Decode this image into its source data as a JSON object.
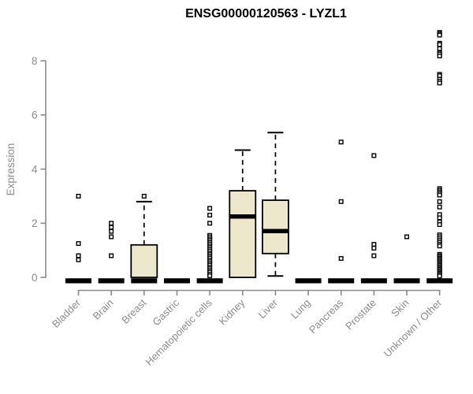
{
  "chart_data": {
    "type": "boxplot",
    "title": "ENSG00000120563 - LYZL1",
    "ylabel": "Expression",
    "xlabel": "",
    "yticks": [
      0,
      2,
      4,
      6,
      8
    ],
    "ylim": [
      0,
      9.2
    ],
    "grid": false,
    "legend": "none",
    "colors": {
      "box_fill": "#EDE7CC",
      "box_stroke": "#000000",
      "median": "#000000",
      "axis": "#8B8B8B",
      "tick_label": "#8B8B8B",
      "title": "#000000",
      "background": "#FFFFFF"
    },
    "groups": [
      {
        "label": "Bladder",
        "box": null,
        "outliers": [
          3.0,
          1.25,
          0.8,
          0.65
        ]
      },
      {
        "label": "Brain",
        "box": null,
        "outliers": [
          2.0,
          1.85,
          1.7,
          1.5,
          0.8
        ]
      },
      {
        "label": "Breast",
        "box": {
          "q1": 0,
          "median": 0,
          "q3": 1.2,
          "whisker_high": 2.8,
          "whisker_low": null
        },
        "outliers": [
          3.0
        ]
      },
      {
        "label": "Gastric",
        "box": null,
        "outliers": []
      },
      {
        "label": "Hematopoietic cells",
        "box": null,
        "outliers": [
          2.55,
          2.3,
          2.0,
          1.55,
          1.49,
          1.42,
          1.36,
          1.29,
          1.23,
          1.16,
          1.1,
          1.03,
          0.97,
          0.9,
          0.84,
          0.77,
          0.71,
          0.64,
          0.58,
          0.51,
          0.45,
          0.38,
          0.32,
          0.25,
          0.19,
          0.12,
          0.06
        ]
      },
      {
        "label": "Kidney",
        "box": {
          "q1": 0,
          "median": 2.25,
          "q3": 3.2,
          "whisker_high": 4.7,
          "whisker_low": null
        },
        "outliers": []
      },
      {
        "label": "Liver",
        "box": {
          "q1": 0.88,
          "median": 1.71,
          "q3": 2.85,
          "whisker_high": 5.35,
          "whisker_low": 0.05
        },
        "outliers": []
      },
      {
        "label": "Lung",
        "box": null,
        "outliers": []
      },
      {
        "label": "Pancreas",
        "box": null,
        "outliers": [
          5.0,
          2.8,
          0.7
        ]
      },
      {
        "label": "Prostate",
        "box": null,
        "outliers": [
          4.5,
          1.22,
          1.08,
          0.8
        ]
      },
      {
        "label": "Skin",
        "box": null,
        "outliers": [
          1.5
        ]
      },
      {
        "label": "Unknown / Other",
        "box": null,
        "outliers": [
          9.05,
          9.0,
          8.95,
          8.65,
          8.6,
          8.45,
          8.3,
          8.25,
          8.18,
          7.5,
          7.45,
          7.32,
          7.25,
          7.18,
          3.28,
          3.22,
          3.16,
          3.1,
          3.04,
          2.8,
          2.6,
          2.32,
          2.2,
          2.05,
          1.95,
          1.57,
          1.5,
          1.43,
          1.36,
          1.29,
          1.22,
          1.16,
          0.85,
          0.8,
          0.75,
          0.7,
          0.65,
          0.6,
          0.55,
          0.5,
          0.45,
          0.4,
          0.35,
          0.3,
          0.25,
          0.2,
          0.15,
          0.1,
          0.05
        ]
      }
    ]
  }
}
